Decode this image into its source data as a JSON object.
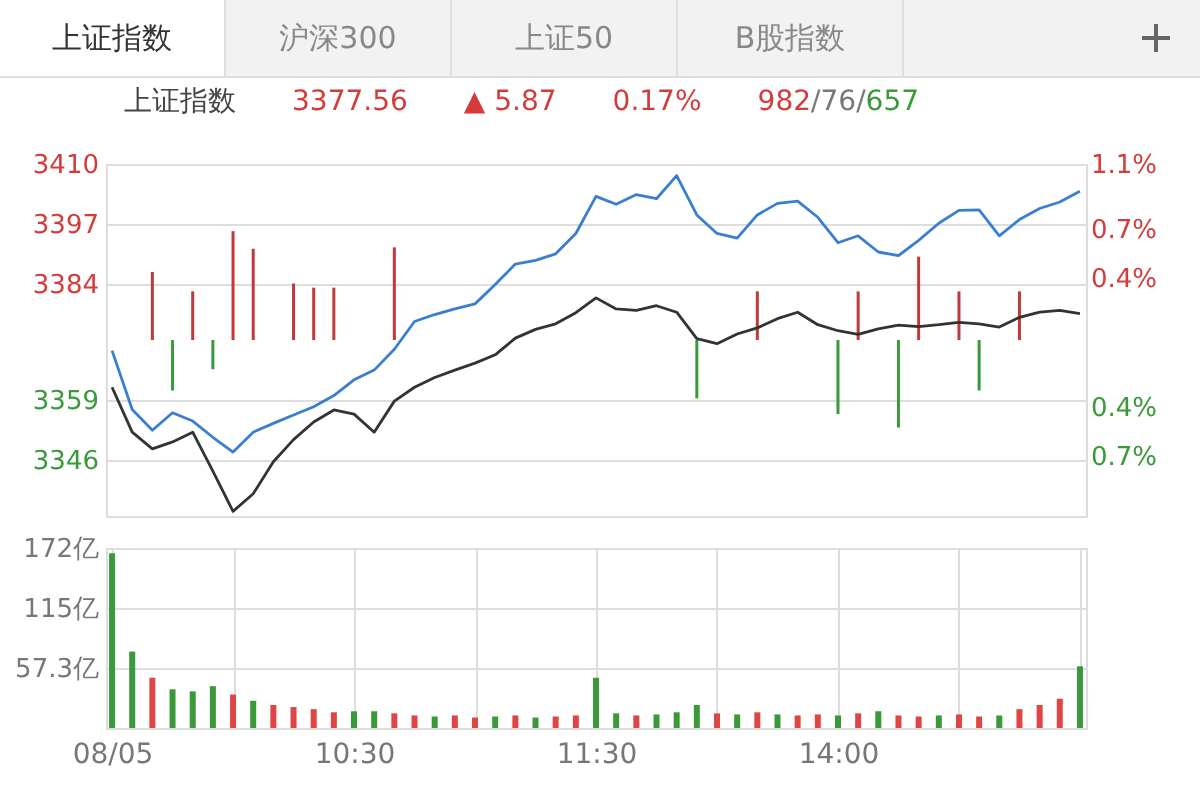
{
  "chart_data": [
    {
      "type": "line",
      "title": "上证指数",
      "annotations": [
        "上证指数",
        "沪深300",
        "上证50",
        "B股指数",
        "3377.56",
        "▲ 5.87",
        "0.17%",
        "982/76/657"
      ],
      "categories": [
        null,
        null,
        null,
        null,
        null,
        null,
        null,
        null,
        null,
        null,
        null,
        null,
        null,
        null,
        null,
        null,
        null,
        null,
        null,
        null,
        null,
        null,
        null,
        null,
        null,
        null,
        null,
        null,
        null,
        null,
        null,
        null,
        null,
        null,
        null,
        null,
        null,
        null,
        null,
        null,
        null,
        null,
        null,
        null,
        null,
        null,
        null,
        null,
        null
      ],
      "ylim": [
        3334,
        3410
      ],
      "yticks": [
        3346,
        3359,
        3384,
        3397,
        3410
      ],
      "y2lim": [
        -1.07,
        1.1
      ],
      "y2ticks": [
        {
          "value": -0.7,
          "label": "0.7%"
        },
        {
          "value": -0.4,
          "label": "0.4%"
        },
        {
          "value": 0.4,
          "label": "0.4%"
        },
        {
          "value": 0.7,
          "label": "0.7%"
        },
        {
          "value": 1.1,
          "label": "1.1%"
        }
      ],
      "grid": true,
      "tick_labels": "y",
      "series": [
        {
          "type": "bar",
          "color": "#c0393b",
          "base": [
            null,
            null,
            3372,
            null,
            3372,
            null,
            3372,
            3372,
            null,
            3372,
            3372,
            3372,
            null,
            null,
            3372,
            null,
            null,
            null,
            null,
            null,
            null,
            null,
            null,
            null,
            null,
            null,
            null,
            null,
            null,
            null,
            null,
            null,
            3372,
            null,
            null,
            null,
            null,
            3372,
            null,
            null,
            3372,
            null,
            3372,
            null,
            null,
            3372,
            null,
            null,
            null
          ],
          "values": [
            null,
            null,
            14.7,
            null,
            10.5,
            null,
            23.5,
            19.7,
            null,
            12.2,
            11.3,
            11.3,
            null,
            null,
            20.0,
            null,
            null,
            null,
            null,
            null,
            null,
            null,
            null,
            null,
            null,
            null,
            null,
            null,
            null,
            null,
            null,
            null,
            10.5,
            null,
            null,
            null,
            null,
            10.5,
            null,
            null,
            18.0,
            null,
            10.5,
            null,
            null,
            10.5,
            null,
            null,
            null
          ]
        },
        {
          "type": "bar",
          "color": "#3a9a3a",
          "base": [
            null,
            null,
            null,
            3372,
            null,
            3372,
            null,
            null,
            null,
            null,
            null,
            null,
            null,
            null,
            null,
            null,
            null,
            null,
            null,
            null,
            null,
            null,
            null,
            null,
            null,
            null,
            null,
            null,
            null,
            3372,
            null,
            null,
            null,
            null,
            null,
            null,
            3372,
            null,
            null,
            3372,
            null,
            null,
            null,
            3372,
            null,
            null,
            null,
            null,
            null
          ],
          "values": [
            null,
            null,
            null,
            -10.9,
            null,
            -6.3,
            null,
            null,
            null,
            null,
            null,
            null,
            null,
            null,
            null,
            null,
            null,
            null,
            null,
            null,
            null,
            null,
            null,
            null,
            null,
            null,
            null,
            null,
            null,
            -12.6,
            null,
            null,
            null,
            null,
            null,
            null,
            -16.0,
            null,
            null,
            -18.9,
            null,
            null,
            null,
            -10.9,
            null,
            null,
            null,
            null,
            null
          ]
        },
        {
          "color": "#3a7fcf",
          "values": [
            3369.7,
            3357,
            3352.5,
            3356.3,
            3354.5,
            3351,
            3347.8,
            3352.1,
            3354,
            3355.8,
            3357.6,
            3360,
            3363.4,
            3365.5,
            3370,
            3376,
            3377.5,
            3378.7,
            3379.8,
            3384,
            3388.4,
            3389.2,
            3390.6,
            3395,
            3403,
            3401.3,
            3403.4,
            3402.5,
            3407.5,
            3399,
            3395,
            3394,
            3399,
            3401.5,
            3402,
            3398.5,
            3393,
            3394.5,
            3391,
            3390.2,
            3393.5,
            3397.2,
            3400,
            3400.1,
            3394.5,
            3398,
            3400.4,
            3401.8,
            3404.1
          ]
        },
        {
          "color": "#333333",
          "values": [
            3361.8,
            3352.1,
            3348.5,
            3350,
            3352.1,
            3343.7,
            3335,
            3338.8,
            3345.7,
            3350.5,
            3354.3,
            3356.9,
            3356,
            3352.1,
            3358.8,
            3361.8,
            3363.9,
            3365.5,
            3367,
            3368.8,
            3372.4,
            3374.3,
            3375.5,
            3377.9,
            3381.1,
            3378.7,
            3378.4,
            3379.4,
            3378,
            3372.3,
            3371.2,
            3373.3,
            3374.6,
            3376.6,
            3378,
            3375.3,
            3374,
            3373.2,
            3374.4,
            3375.2,
            3374.9,
            3375.3,
            3375.8,
            3375.5,
            3374.8,
            3376.9,
            3378,
            3378.4,
            3377.7
          ]
        }
      ]
    },
    {
      "type": "bar",
      "categories": [
        "08/05",
        null,
        null,
        null,
        null,
        null,
        null,
        null,
        null,
        null,
        null,
        null,
        "10:30",
        null,
        null,
        null,
        null,
        null,
        null,
        null,
        null,
        null,
        null,
        null,
        "11:30",
        null,
        null,
        null,
        null,
        null,
        null,
        null,
        null,
        null,
        null,
        null,
        "14:00",
        null,
        null,
        null,
        null,
        null,
        null,
        null,
        null,
        null,
        null,
        null,
        null
      ],
      "values": [
        167,
        73,
        48,
        37,
        35,
        40,
        32,
        26,
        22,
        20,
        18,
        15,
        16,
        16,
        14,
        12,
        11,
        12,
        10,
        11,
        12,
        10,
        11,
        12,
        48,
        14,
        12,
        13,
        15,
        22,
        14,
        13,
        15,
        13,
        12,
        13,
        12,
        14,
        16,
        12,
        11,
        12,
        13,
        11,
        12,
        18,
        22,
        28,
        59
      ],
      "colors": [
        "#3a9a3a",
        "#3a9a3a",
        "#e04545",
        "#3a9a3a",
        "#3a9a3a",
        "#3a9a3a",
        "#e04545",
        "#3a9a3a",
        "#e04545",
        "#e04545",
        "#e04545",
        "#e04545",
        "#3a9a3a",
        "#3a9a3a",
        "#e04545",
        "#e04545",
        "#3a9a3a",
        "#e04545",
        "#e04545",
        "#3a9a3a",
        "#e04545",
        "#3a9a3a",
        "#e04545",
        "#e04545",
        "#3a9a3a",
        "#3a9a3a",
        "#e04545",
        "#3a9a3a",
        "#3a9a3a",
        "#3a9a3a",
        "#e04545",
        "#3a9a3a",
        "#e04545",
        "#3a9a3a",
        "#e04545",
        "#e04545",
        "#3a9a3a",
        "#e04545",
        "#3a9a3a",
        "#e04545",
        "#e04545",
        "#3a9a3a",
        "#e04545",
        "#e04545",
        "#3a9a3a",
        "#e04545",
        "#e04545",
        "#e04545",
        "#3a9a3a"
      ],
      "ylim": [
        0,
        172
      ],
      "yticks": [
        {
          "value": 57.3,
          "label": "57.3亿"
        },
        {
          "value": 115,
          "label": "115亿"
        },
        {
          "value": 172,
          "label": "172亿"
        }
      ],
      "grid": true
    }
  ]
}
